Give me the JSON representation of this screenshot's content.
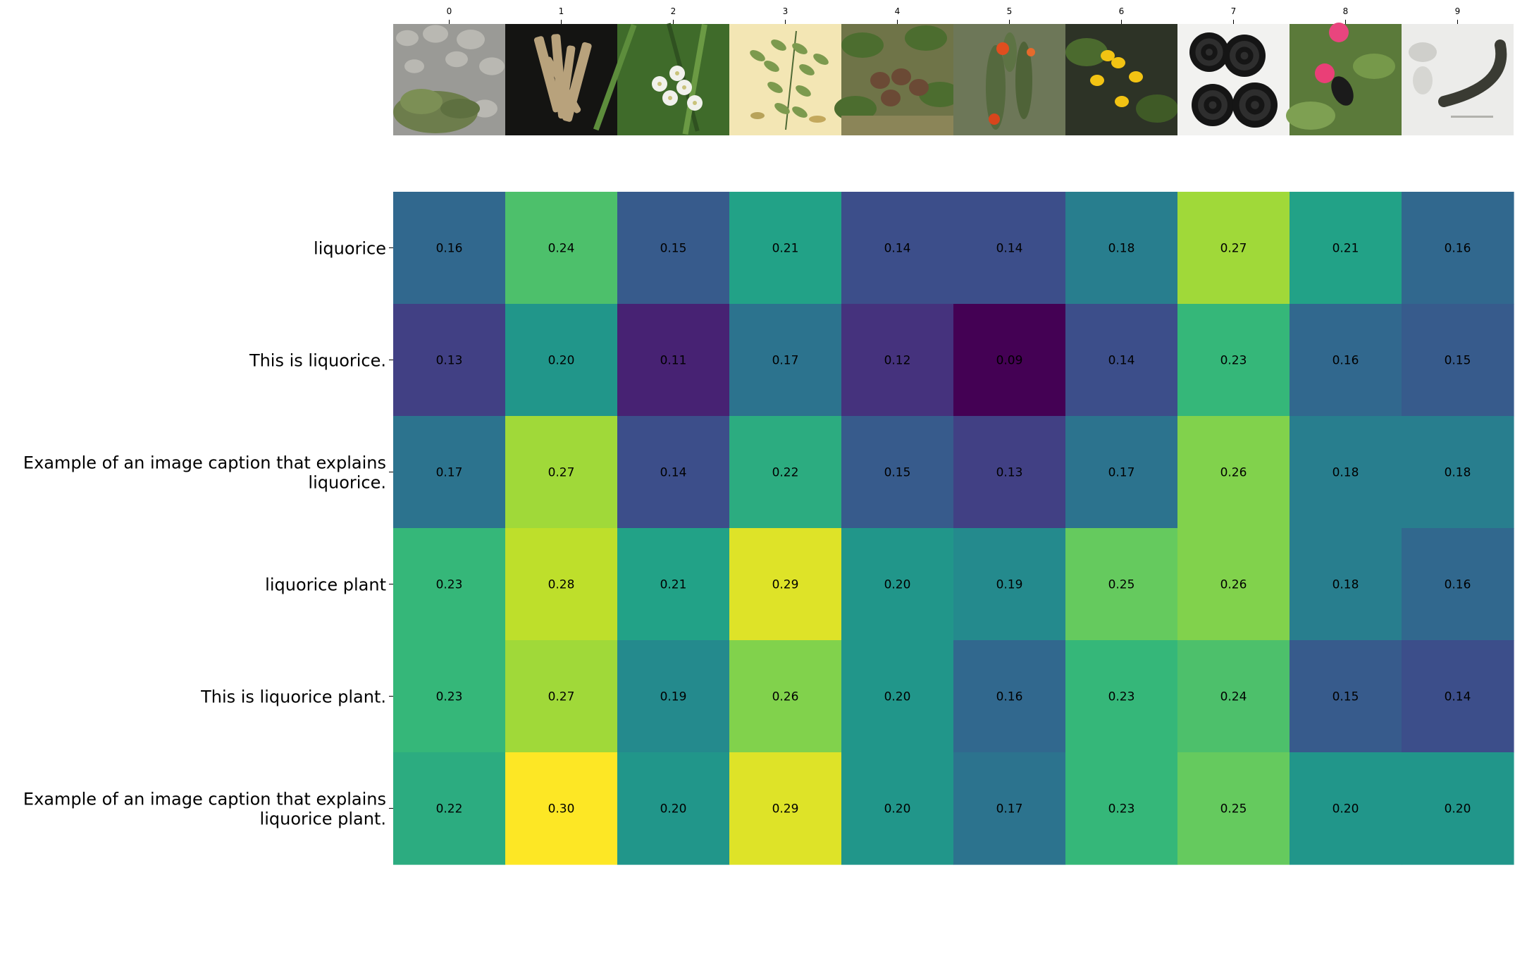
{
  "chart_data": {
    "type": "heatmap",
    "title": "",
    "xlabel": "",
    "ylabel": "",
    "colormap": "viridis",
    "value_range": [
      0.09,
      0.3
    ],
    "grid": false,
    "columns": [
      "0",
      "1",
      "2",
      "3",
      "4",
      "5",
      "6",
      "7",
      "8",
      "9"
    ],
    "column_images": [
      "pebbles-with-small-plant",
      "dried-liquorice-root-sticks",
      "white-flowers-in-grass",
      "botanical-illustration-liquorice-plant",
      "seed-pods-on-plant",
      "cactus-with-red-flower",
      "yellow-flowers",
      "black-liquorice-wheels",
      "pink-flower-with-bee",
      "scientific-illustration-leech"
    ],
    "rows": [
      {
        "label_lines": [
          "liquorice"
        ],
        "values": [
          0.16,
          0.24,
          0.15,
          0.21,
          0.14,
          0.14,
          0.18,
          0.27,
          0.21,
          0.16
        ]
      },
      {
        "label_lines": [
          "This is liquorice."
        ],
        "values": [
          0.13,
          0.2,
          0.11,
          0.17,
          0.12,
          0.09,
          0.14,
          0.23,
          0.16,
          0.15
        ]
      },
      {
        "label_lines": [
          "Example of an image caption that explains",
          "liquorice."
        ],
        "values": [
          0.17,
          0.27,
          0.14,
          0.22,
          0.15,
          0.13,
          0.17,
          0.26,
          0.18,
          0.18
        ]
      },
      {
        "label_lines": [
          "liquorice plant"
        ],
        "values": [
          0.23,
          0.28,
          0.21,
          0.29,
          0.2,
          0.19,
          0.25,
          0.26,
          0.18,
          0.16
        ]
      },
      {
        "label_lines": [
          "This is liquorice plant."
        ],
        "values": [
          0.23,
          0.27,
          0.19,
          0.26,
          0.2,
          0.16,
          0.23,
          0.24,
          0.15,
          0.14
        ]
      },
      {
        "label_lines": [
          "Example of an image caption that explains",
          "liquorice plant."
        ],
        "values": [
          0.22,
          0.3,
          0.2,
          0.29,
          0.2,
          0.17,
          0.23,
          0.25,
          0.2,
          0.2
        ]
      }
    ]
  }
}
